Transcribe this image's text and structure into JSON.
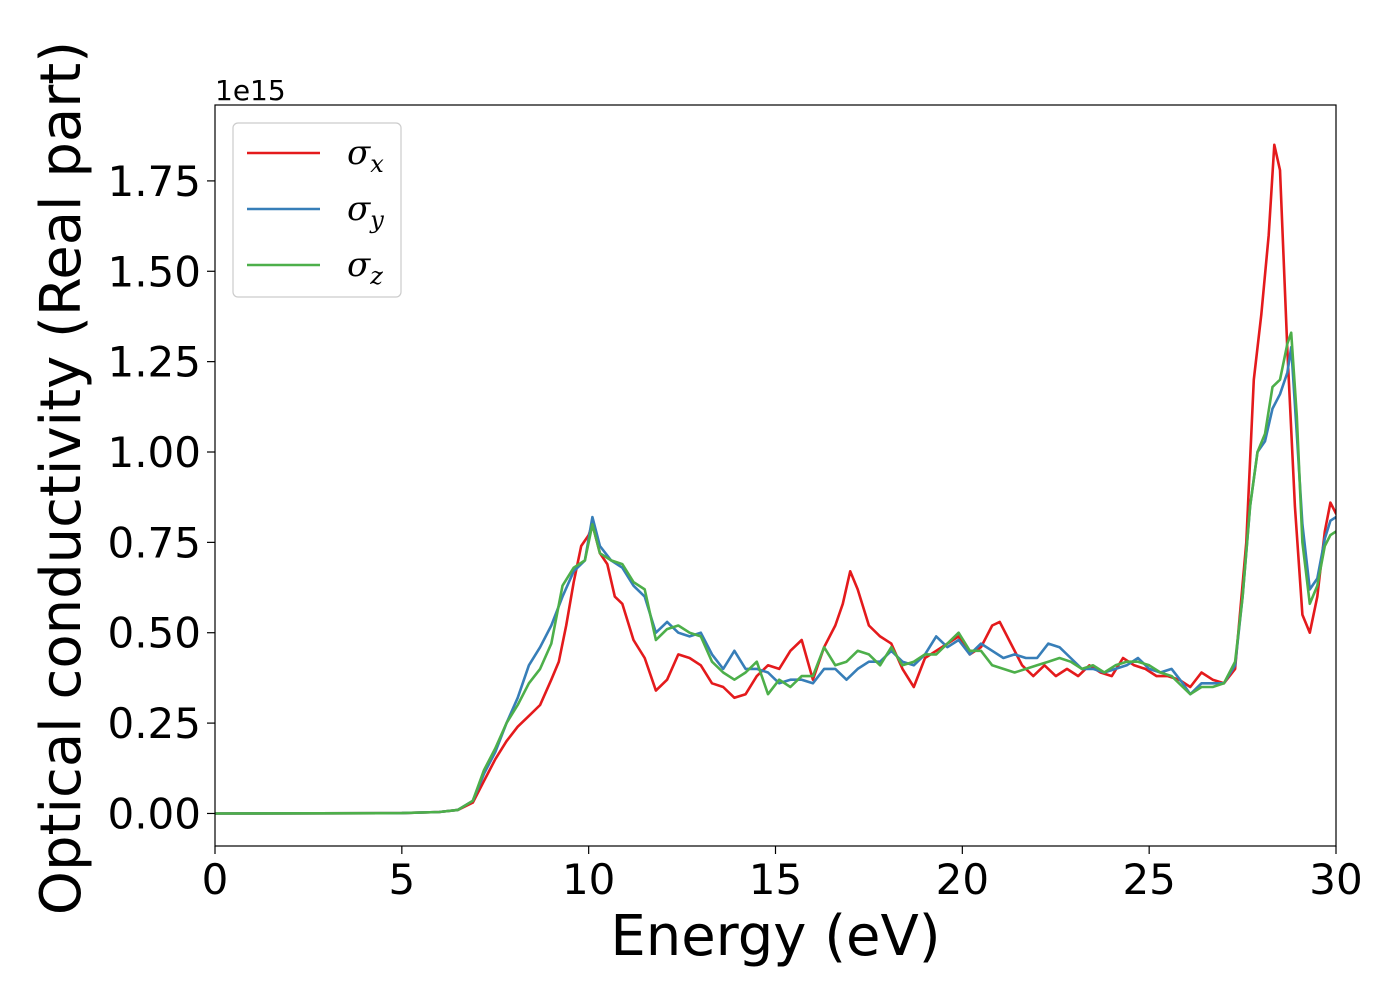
{
  "chart_data": {
    "type": "line",
    "title": "",
    "xlabel": "Energy (eV)",
    "ylabel": "Optical conductivity (Real part)",
    "y_offset_label": "1e15",
    "xlim": [
      0,
      30
    ],
    "ylim": [
      -0.09,
      1.96
    ],
    "x_ticks": [
      0,
      5,
      10,
      15,
      20,
      25,
      30
    ],
    "x_tick_labels": [
      "0",
      "5",
      "10",
      "15",
      "20",
      "25",
      "30"
    ],
    "y_ticks": [
      0.0,
      0.25,
      0.5,
      0.75,
      1.0,
      1.25,
      1.5,
      1.75
    ],
    "y_tick_labels": [
      "0.00",
      "0.25",
      "0.50",
      "0.75",
      "1.00",
      "1.25",
      "1.50",
      "1.75"
    ],
    "grid": false,
    "legend_position": "upper-left",
    "series": [
      {
        "name": "σx",
        "symbol": "σ",
        "subscript": "x",
        "color": "#e41a1c",
        "points": [
          [
            0,
            0
          ],
          [
            5,
            0.001
          ],
          [
            6,
            0.004
          ],
          [
            6.5,
            0.01
          ],
          [
            6.9,
            0.03
          ],
          [
            7.2,
            0.09
          ],
          [
            7.5,
            0.15
          ],
          [
            7.8,
            0.2
          ],
          [
            8.1,
            0.24
          ],
          [
            8.4,
            0.27
          ],
          [
            8.7,
            0.3
          ],
          [
            9.0,
            0.37
          ],
          [
            9.2,
            0.42
          ],
          [
            9.4,
            0.52
          ],
          [
            9.6,
            0.64
          ],
          [
            9.8,
            0.74
          ],
          [
            10.0,
            0.77
          ],
          [
            10.1,
            0.8
          ],
          [
            10.3,
            0.72
          ],
          [
            10.5,
            0.69
          ],
          [
            10.7,
            0.6
          ],
          [
            10.9,
            0.58
          ],
          [
            11.2,
            0.48
          ],
          [
            11.5,
            0.43
          ],
          [
            11.8,
            0.34
          ],
          [
            12.1,
            0.37
          ],
          [
            12.4,
            0.44
          ],
          [
            12.7,
            0.43
          ],
          [
            13.0,
            0.41
          ],
          [
            13.3,
            0.36
          ],
          [
            13.6,
            0.35
          ],
          [
            13.9,
            0.32
          ],
          [
            14.2,
            0.33
          ],
          [
            14.5,
            0.38
          ],
          [
            14.8,
            0.41
          ],
          [
            15.1,
            0.4
          ],
          [
            15.4,
            0.45
          ],
          [
            15.7,
            0.48
          ],
          [
            16.0,
            0.37
          ],
          [
            16.3,
            0.46
          ],
          [
            16.6,
            0.52
          ],
          [
            16.8,
            0.58
          ],
          [
            17.0,
            0.67
          ],
          [
            17.2,
            0.62
          ],
          [
            17.5,
            0.52
          ],
          [
            17.8,
            0.49
          ],
          [
            18.1,
            0.47
          ],
          [
            18.4,
            0.4
          ],
          [
            18.7,
            0.35
          ],
          [
            19.0,
            0.43
          ],
          [
            19.3,
            0.45
          ],
          [
            19.6,
            0.47
          ],
          [
            19.9,
            0.49
          ],
          [
            20.2,
            0.44
          ],
          [
            20.5,
            0.46
          ],
          [
            20.8,
            0.52
          ],
          [
            21.0,
            0.53
          ],
          [
            21.3,
            0.47
          ],
          [
            21.6,
            0.41
          ],
          [
            21.9,
            0.38
          ],
          [
            22.2,
            0.41
          ],
          [
            22.5,
            0.38
          ],
          [
            22.8,
            0.4
          ],
          [
            23.1,
            0.38
          ],
          [
            23.4,
            0.41
          ],
          [
            23.7,
            0.39
          ],
          [
            24.0,
            0.38
          ],
          [
            24.3,
            0.43
          ],
          [
            24.6,
            0.41
          ],
          [
            24.9,
            0.4
          ],
          [
            25.2,
            0.38
          ],
          [
            25.5,
            0.38
          ],
          [
            25.8,
            0.37
          ],
          [
            26.1,
            0.35
          ],
          [
            26.4,
            0.39
          ],
          [
            26.7,
            0.37
          ],
          [
            27.0,
            0.36
          ],
          [
            27.3,
            0.4
          ],
          [
            27.6,
            0.75
          ],
          [
            27.8,
            1.2
          ],
          [
            28.0,
            1.38
          ],
          [
            28.2,
            1.6
          ],
          [
            28.35,
            1.85
          ],
          [
            28.5,
            1.78
          ],
          [
            28.7,
            1.28
          ],
          [
            28.9,
            0.85
          ],
          [
            29.1,
            0.55
          ],
          [
            29.3,
            0.5
          ],
          [
            29.5,
            0.6
          ],
          [
            29.7,
            0.78
          ],
          [
            29.85,
            0.86
          ],
          [
            30.0,
            0.83
          ]
        ]
      },
      {
        "name": "σy",
        "symbol": "σ",
        "subscript": "y",
        "color": "#377eb8",
        "points": [
          [
            0,
            0
          ],
          [
            5,
            0.001
          ],
          [
            6,
            0.004
          ],
          [
            6.5,
            0.01
          ],
          [
            6.9,
            0.035
          ],
          [
            7.2,
            0.11
          ],
          [
            7.5,
            0.17
          ],
          [
            7.8,
            0.25
          ],
          [
            8.1,
            0.32
          ],
          [
            8.4,
            0.41
          ],
          [
            8.7,
            0.46
          ],
          [
            9.0,
            0.52
          ],
          [
            9.3,
            0.6
          ],
          [
            9.6,
            0.67
          ],
          [
            9.9,
            0.7
          ],
          [
            10.1,
            0.82
          ],
          [
            10.3,
            0.74
          ],
          [
            10.6,
            0.7
          ],
          [
            10.9,
            0.68
          ],
          [
            11.2,
            0.63
          ],
          [
            11.5,
            0.6
          ],
          [
            11.8,
            0.5
          ],
          [
            12.1,
            0.53
          ],
          [
            12.4,
            0.5
          ],
          [
            12.7,
            0.49
          ],
          [
            13.0,
            0.5
          ],
          [
            13.3,
            0.44
          ],
          [
            13.6,
            0.4
          ],
          [
            13.9,
            0.45
          ],
          [
            14.2,
            0.4
          ],
          [
            14.5,
            0.4
          ],
          [
            14.8,
            0.39
          ],
          [
            15.1,
            0.36
          ],
          [
            15.4,
            0.37
          ],
          [
            15.7,
            0.37
          ],
          [
            16.0,
            0.36
          ],
          [
            16.3,
            0.4
          ],
          [
            16.6,
            0.4
          ],
          [
            16.9,
            0.37
          ],
          [
            17.2,
            0.4
          ],
          [
            17.5,
            0.42
          ],
          [
            17.8,
            0.42
          ],
          [
            18.1,
            0.45
          ],
          [
            18.4,
            0.42
          ],
          [
            18.7,
            0.41
          ],
          [
            19.0,
            0.44
          ],
          [
            19.3,
            0.49
          ],
          [
            19.6,
            0.46
          ],
          [
            19.9,
            0.48
          ],
          [
            20.2,
            0.44
          ],
          [
            20.5,
            0.47
          ],
          [
            20.8,
            0.45
          ],
          [
            21.1,
            0.43
          ],
          [
            21.4,
            0.44
          ],
          [
            21.7,
            0.43
          ],
          [
            22.0,
            0.43
          ],
          [
            22.3,
            0.47
          ],
          [
            22.6,
            0.46
          ],
          [
            22.9,
            0.43
          ],
          [
            23.2,
            0.4
          ],
          [
            23.5,
            0.4
          ],
          [
            23.8,
            0.39
          ],
          [
            24.1,
            0.4
          ],
          [
            24.4,
            0.41
          ],
          [
            24.7,
            0.43
          ],
          [
            25.0,
            0.4
          ],
          [
            25.3,
            0.39
          ],
          [
            25.6,
            0.4
          ],
          [
            25.9,
            0.36
          ],
          [
            26.1,
            0.33
          ],
          [
            26.4,
            0.36
          ],
          [
            26.7,
            0.36
          ],
          [
            27.0,
            0.36
          ],
          [
            27.3,
            0.41
          ],
          [
            27.5,
            0.6
          ],
          [
            27.7,
            0.85
          ],
          [
            27.9,
            1.0
          ],
          [
            28.1,
            1.03
          ],
          [
            28.3,
            1.12
          ],
          [
            28.5,
            1.16
          ],
          [
            28.7,
            1.22
          ],
          [
            28.8,
            1.29
          ],
          [
            28.95,
            1.05
          ],
          [
            29.1,
            0.8
          ],
          [
            29.3,
            0.62
          ],
          [
            29.5,
            0.65
          ],
          [
            29.7,
            0.76
          ],
          [
            29.85,
            0.81
          ],
          [
            30.0,
            0.82
          ]
        ]
      },
      {
        "name": "σz",
        "symbol": "σ",
        "subscript": "z",
        "color": "#4daf4a",
        "points": [
          [
            0,
            0
          ],
          [
            5,
            0.001
          ],
          [
            6,
            0.004
          ],
          [
            6.5,
            0.01
          ],
          [
            6.9,
            0.035
          ],
          [
            7.2,
            0.12
          ],
          [
            7.5,
            0.18
          ],
          [
            7.8,
            0.25
          ],
          [
            8.1,
            0.3
          ],
          [
            8.4,
            0.36
          ],
          [
            8.7,
            0.4
          ],
          [
            9.0,
            0.47
          ],
          [
            9.3,
            0.63
          ],
          [
            9.6,
            0.68
          ],
          [
            9.9,
            0.7
          ],
          [
            10.1,
            0.8
          ],
          [
            10.3,
            0.72
          ],
          [
            10.6,
            0.7
          ],
          [
            10.9,
            0.69
          ],
          [
            11.2,
            0.64
          ],
          [
            11.5,
            0.62
          ],
          [
            11.8,
            0.48
          ],
          [
            12.1,
            0.51
          ],
          [
            12.4,
            0.52
          ],
          [
            12.7,
            0.5
          ],
          [
            13.0,
            0.49
          ],
          [
            13.3,
            0.42
          ],
          [
            13.6,
            0.39
          ],
          [
            13.9,
            0.37
          ],
          [
            14.2,
            0.39
          ],
          [
            14.5,
            0.42
          ],
          [
            14.8,
            0.33
          ],
          [
            15.1,
            0.37
          ],
          [
            15.4,
            0.35
          ],
          [
            15.7,
            0.38
          ],
          [
            16.0,
            0.38
          ],
          [
            16.3,
            0.46
          ],
          [
            16.6,
            0.41
          ],
          [
            16.9,
            0.42
          ],
          [
            17.2,
            0.45
          ],
          [
            17.5,
            0.44
          ],
          [
            17.8,
            0.41
          ],
          [
            18.1,
            0.46
          ],
          [
            18.4,
            0.41
          ],
          [
            18.7,
            0.42
          ],
          [
            19.0,
            0.44
          ],
          [
            19.3,
            0.44
          ],
          [
            19.6,
            0.47
          ],
          [
            19.9,
            0.5
          ],
          [
            20.2,
            0.45
          ],
          [
            20.5,
            0.45
          ],
          [
            20.8,
            0.41
          ],
          [
            21.1,
            0.4
          ],
          [
            21.4,
            0.39
          ],
          [
            21.7,
            0.4
          ],
          [
            22.0,
            0.41
          ],
          [
            22.3,
            0.42
          ],
          [
            22.6,
            0.43
          ],
          [
            22.9,
            0.42
          ],
          [
            23.2,
            0.4
          ],
          [
            23.5,
            0.41
          ],
          [
            23.8,
            0.39
          ],
          [
            24.1,
            0.41
          ],
          [
            24.4,
            0.42
          ],
          [
            24.7,
            0.42
          ],
          [
            25.0,
            0.41
          ],
          [
            25.3,
            0.39
          ],
          [
            25.6,
            0.38
          ],
          [
            25.9,
            0.35
          ],
          [
            26.1,
            0.33
          ],
          [
            26.4,
            0.35
          ],
          [
            26.7,
            0.35
          ],
          [
            27.0,
            0.36
          ],
          [
            27.3,
            0.42
          ],
          [
            27.5,
            0.6
          ],
          [
            27.7,
            0.85
          ],
          [
            27.9,
            1.0
          ],
          [
            28.1,
            1.05
          ],
          [
            28.3,
            1.18
          ],
          [
            28.5,
            1.2
          ],
          [
            28.7,
            1.3
          ],
          [
            28.8,
            1.33
          ],
          [
            28.95,
            1.1
          ],
          [
            29.1,
            0.75
          ],
          [
            29.3,
            0.58
          ],
          [
            29.5,
            0.63
          ],
          [
            29.7,
            0.74
          ],
          [
            29.85,
            0.77
          ],
          [
            30.0,
            0.78
          ]
        ]
      }
    ]
  }
}
